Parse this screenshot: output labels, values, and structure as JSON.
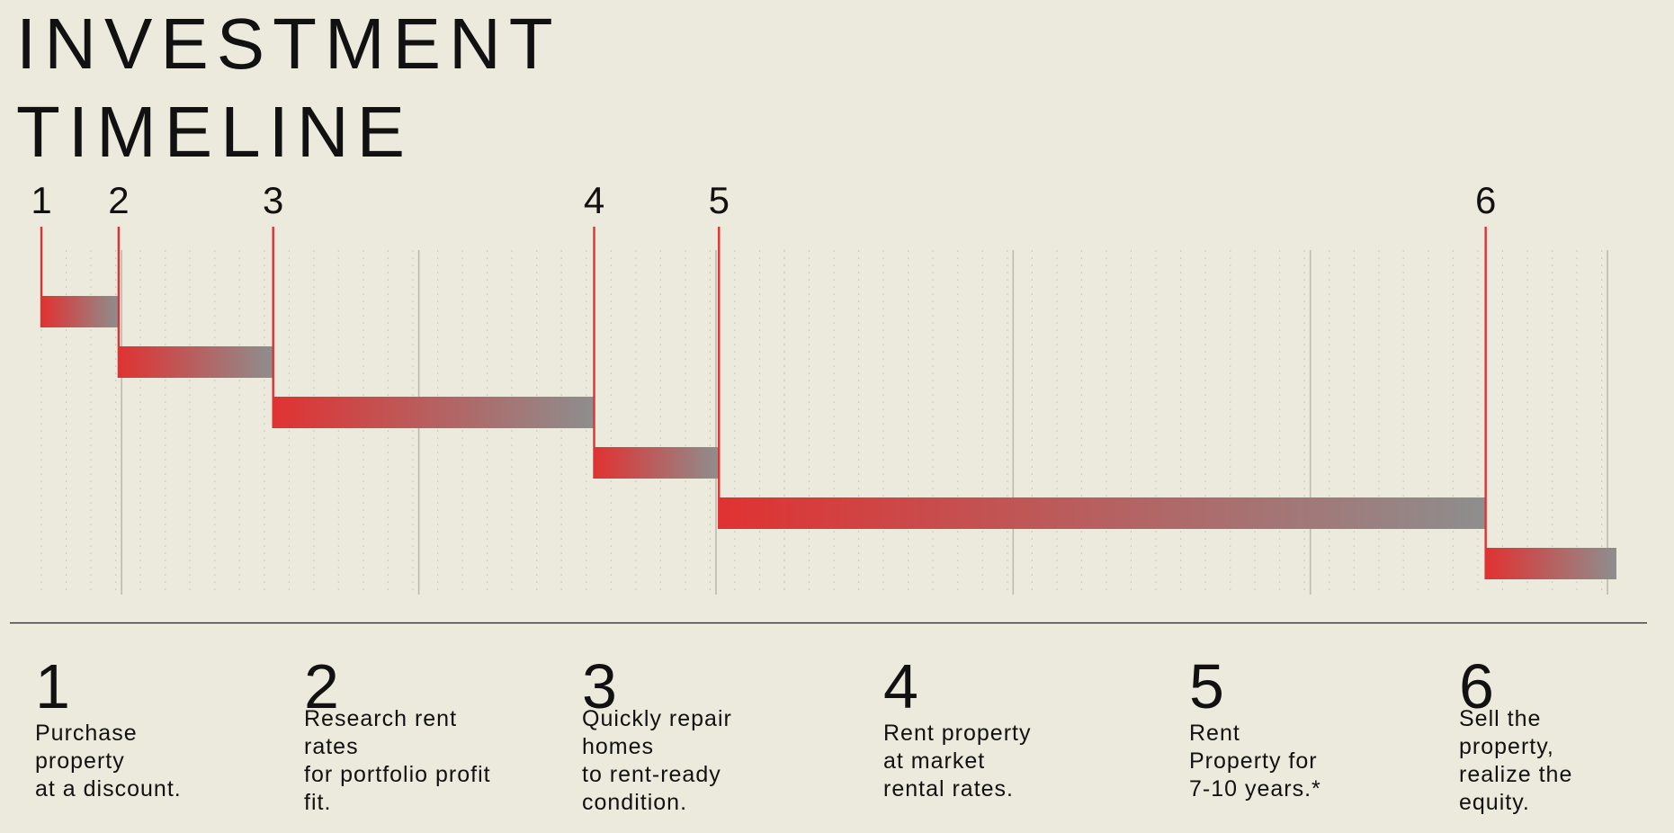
{
  "title": {
    "line1": "INVESTMENT",
    "line2": "TIMELINE"
  },
  "colors": {
    "background": "#eceadd",
    "accent_red": "#e03232",
    "bar_end_gray": "#8e8e8e",
    "text": "#111111",
    "gridline_major": "#bdbab0",
    "gridline_minor": "#cfccc1",
    "separator": "#222222"
  },
  "chart_data": {
    "type": "bar",
    "subtype": "timeline-gantt",
    "title": "INVESTMENT TIMELINE",
    "xlabel": "",
    "ylabel": "",
    "grid": true,
    "legend": "none",
    "steps": [
      {
        "label": "1",
        "start": 0.0,
        "end": 1.3
      },
      {
        "label": "2",
        "start": 1.3,
        "end": 3.9
      },
      {
        "label": "3",
        "start": 3.9,
        "end": 9.3
      },
      {
        "label": "4",
        "start": 9.3,
        "end": 11.4
      },
      {
        "label": "5",
        "start": 11.4,
        "end": 24.3
      },
      {
        "label": "6",
        "start": 24.3,
        "end": 26.5
      }
    ],
    "xlim": [
      0,
      26.5
    ],
    "major_gridlines": [
      1.35,
      6.35,
      11.35,
      16.35,
      21.35,
      26.35
    ],
    "minor_gridline_step": 0.4167
  },
  "steps": [
    {
      "number": "1",
      "description": "Purchase\nproperty\nat a discount."
    },
    {
      "number": "2",
      "description": "Research rent\nrates\nfor portfolio profit\nfit."
    },
    {
      "number": "3",
      "description": "Quickly repair\nhomes\nto rent-ready\ncondition."
    },
    {
      "number": "4",
      "description": "Rent property\nat market\nrental rates."
    },
    {
      "number": "5",
      "description": "Rent\nProperty for\n7-10 years.*"
    },
    {
      "number": "6",
      "description": "Sell the\nproperty,\nrealize the\nequity."
    }
  ]
}
